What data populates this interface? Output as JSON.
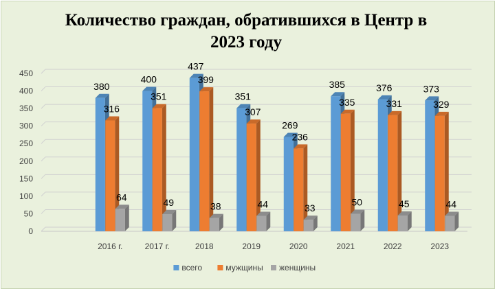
{
  "chart_data": {
    "type": "bar",
    "title_line1": "Количество граждан, обратившихся в Центр в",
    "title_line2": "2023 году",
    "categories": [
      "2016 г.",
      "2017 г.",
      "2018",
      "2019",
      "2020",
      "2021",
      "2022",
      "2023"
    ],
    "series": [
      {
        "name": "всего",
        "values": [
          380,
          400,
          437,
          351,
          269,
          385,
          376,
          373
        ],
        "color": "#5b9bd5"
      },
      {
        "name": "мужщины",
        "values": [
          316,
          351,
          399,
          307,
          236,
          335,
          331,
          329
        ],
        "color": "#ed7d31"
      },
      {
        "name": "женщины",
        "values": [
          64,
          49,
          38,
          44,
          33,
          50,
          45,
          44
        ],
        "color": "#a5a5a5"
      }
    ],
    "yticks": [
      "0",
      "50",
      "100",
      "150",
      "200",
      "250",
      "300",
      "350",
      "400",
      "450"
    ],
    "ylim": [
      0,
      450
    ],
    "grid": true,
    "legend_position": "bottom",
    "bar_style": "3d-column"
  }
}
